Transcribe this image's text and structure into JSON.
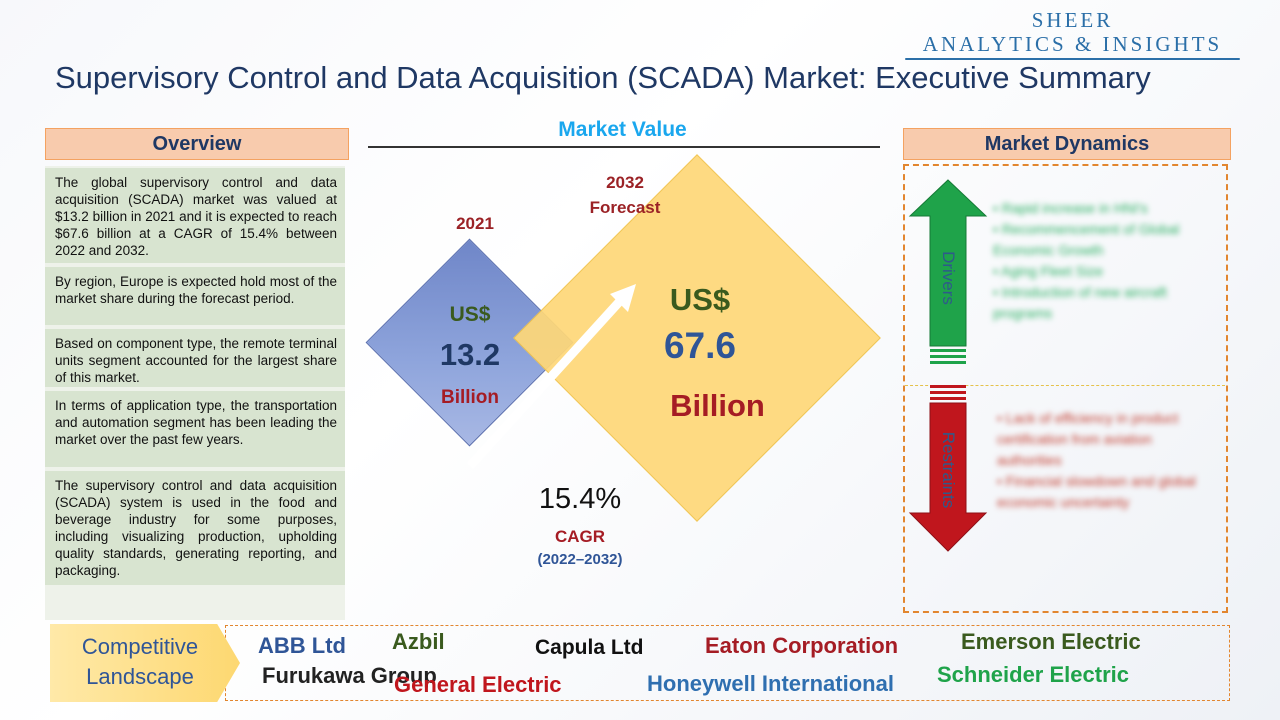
{
  "logo": {
    "line1": "SHEER",
    "line2": "ANALYTICS & INSIGHTS"
  },
  "title": "Supervisory Control and Data Acquisition (SCADA) Market: Executive Summary",
  "overview": {
    "header": "Overview",
    "items": [
      "The global supervisory control and data acquisition (SCADA) market was valued at $13.2 billion in 2021 and it is expected to reach $67.6 billion at a CAGR of 15.4% between 2022 and 2032.",
      "By region, Europe is expected hold most of the market share during the forecast period.",
      "Based on component type, the remote terminal units segment accounted for the largest share of this market.",
      "In terms of application type, the transportation and automation segment has been leading the market over the past few years.",
      "The supervisory control and data acquisition (SCADA) system is used in the food and beverage industry for some purposes, including visualizing production, upholding quality standards, generating reporting, and packaging."
    ]
  },
  "market_value": {
    "header": "Market Value",
    "year_2021": "2021",
    "year_2032_line1": "2032",
    "year_2032_line2": "Forecast",
    "small": {
      "currency": "US$",
      "value": "13.2",
      "unit": "Billion"
    },
    "big": {
      "currency": "US$",
      "value": "67.6",
      "unit": "Billion"
    },
    "cagr": {
      "value": "15.4%",
      "label": "CAGR",
      "years": "(2022–2032)"
    }
  },
  "market_dynamics": {
    "header": "Market Dynamics",
    "drivers_label": "Drivers",
    "restraints_label": "Restraints",
    "drivers": [
      "Rapid increase in HNI's",
      "Recommencement of Global Economic Growth",
      "Aging Fleet Size",
      "Introduction of new aircraft programs"
    ],
    "restraints": [
      "Lack of efficiency in product certification from aviation authorities",
      "Financial slowdown and global economic uncertainty"
    ]
  },
  "competitive": {
    "title": "Competitive Landscape",
    "companies": [
      {
        "name": "ABB Ltd",
        "color": "#2f5597"
      },
      {
        "name": "Azbil",
        "color": "#3a5a1e"
      },
      {
        "name": "Capula Ltd",
        "color": "#111111"
      },
      {
        "name": "Eaton Corporation",
        "color": "#a51c24"
      },
      {
        "name": "Emerson Electric",
        "color": "#3a5a1e"
      },
      {
        "name": "Furukawa Group",
        "color": "#222222"
      },
      {
        "name": "General Electric",
        "color": "#c0161d"
      },
      {
        "name": "Honeywell International",
        "color": "#2f6fb0"
      },
      {
        "name": "Schneider Electric",
        "color": "#1fa34a"
      }
    ]
  }
}
